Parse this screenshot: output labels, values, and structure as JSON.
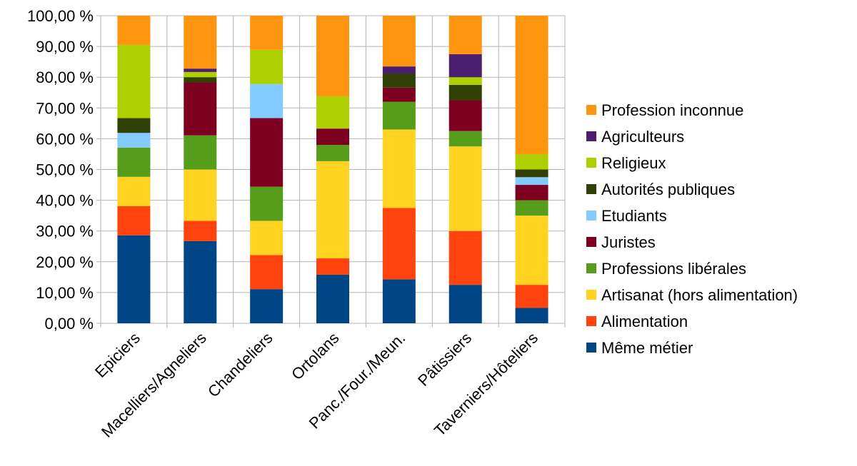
{
  "chart_data": {
    "type": "bar",
    "stacked": true,
    "categories": [
      "Epiciers",
      "Macelliers/Agneliers",
      "Chandeliers",
      "Ortolans",
      "Panc./Four./Meun.",
      "Pâtissiers",
      "Taverniers/Hôteliers"
    ],
    "series": [
      {
        "name": "Même métier",
        "color": "#004586",
        "values": [
          28.6,
          26.7,
          11.1,
          15.8,
          14.3,
          12.5,
          5.0
        ]
      },
      {
        "name": "Alimentation",
        "color": "#ff420e",
        "values": [
          9.5,
          6.6,
          11.1,
          5.3,
          23.2,
          17.5,
          7.5
        ]
      },
      {
        "name": "Artisanat (hors alimentation)",
        "color": "#ffd320",
        "values": [
          9.5,
          16.7,
          11.1,
          31.6,
          25.5,
          27.5,
          22.5
        ]
      },
      {
        "name": "Professions libérales",
        "color": "#579d1c",
        "values": [
          9.5,
          11.1,
          11.1,
          5.3,
          9.0,
          5.0,
          5.0
        ]
      },
      {
        "name": "Juristes",
        "color": "#7e0021",
        "values": [
          0,
          17.2,
          22.3,
          5.3,
          4.6,
          10.0,
          5.0
        ]
      },
      {
        "name": "Etudiants",
        "color": "#83caff",
        "values": [
          4.8,
          0,
          11.1,
          0,
          0,
          0,
          2.5
        ]
      },
      {
        "name": "Autorités publiques",
        "color": "#314004",
        "values": [
          4.8,
          1.7,
          0,
          0,
          4.6,
          5.0,
          2.5
        ]
      },
      {
        "name": "Religieux",
        "color": "#aecf00",
        "values": [
          23.8,
          1.7,
          11.1,
          10.5,
          0,
          2.5,
          5.0
        ]
      },
      {
        "name": "Agriculteurs",
        "color": "#4b1f6f",
        "values": [
          0,
          1.1,
          0,
          0,
          2.3,
          7.5,
          0
        ]
      },
      {
        "name": "Profession inconnue",
        "color": "#ff950e",
        "values": [
          9.5,
          17.2,
          11.1,
          26.2,
          16.5,
          12.5,
          45.0
        ]
      }
    ],
    "y_ticks": [
      "0,00 %",
      "10,00 %",
      "20,00 %",
      "30,00 %",
      "40,00 %",
      "50,00 %",
      "60,00 %",
      "70,00 %",
      "80,00 %",
      "90,00 %",
      "100,00 %"
    ],
    "ylim": [
      0,
      100
    ],
    "grid": true,
    "legend": "right"
  }
}
